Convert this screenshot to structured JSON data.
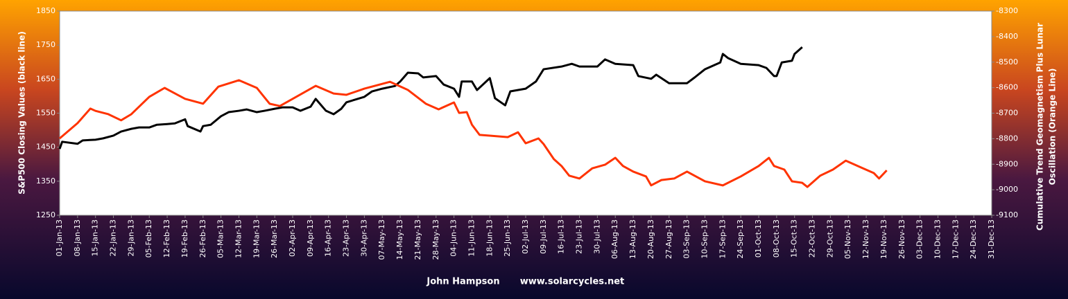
{
  "chart_data": {
    "type": "line",
    "ylabel": "S&P500 Closing  Values (black line)",
    "y2label": [
      "Cumulative Trend Geomagnetism Plus Lunar",
      "Oscillation (Orange Line)"
    ],
    "footer": [
      "John Hampson",
      "www.solarcycles.net"
    ],
    "xlim": [
      "01-Jan-13",
      "31-Dec-13"
    ],
    "xticks": [
      "01-Jan-13",
      "08-Jan-13",
      "15-Jan-13",
      "22-Jan-13",
      "29-Jan-13",
      "05-Feb-13",
      "12-Feb-13",
      "19-Feb-13",
      "26-Feb-13",
      "05-Mar-13",
      "12-Mar-13",
      "19-Mar-13",
      "26-Mar-13",
      "02-Apr-13",
      "09-Apr-13",
      "16-Apr-13",
      "23-Apr-13",
      "30-Apr-13",
      "07-May-13",
      "14-May-13",
      "21-May-13",
      "28-May-13",
      "04-Jun-13",
      "11-Jun-13",
      "18-Jun-13",
      "25-Jun-13",
      "02-Jul-13",
      "09-Jul-13",
      "16-Jul-13",
      "23-Jul-13",
      "30-Jul-13",
      "06-Aug-13",
      "13-Aug-13",
      "20-Aug-13",
      "27-Aug-13",
      "03-Sep-13",
      "10-Sep-13",
      "17-Sep-13",
      "24-Sep-13",
      "01-Oct-13",
      "08-Oct-13",
      "15-Oct-13",
      "22-Oct-13",
      "29-Oct-13",
      "05-Nov-13",
      "12-Nov-13",
      "19-Nov-13",
      "26-Nov-13",
      "03-Dec-13",
      "10-Dec-13",
      "17-Dec-13",
      "24-Dec-13",
      "31-Dec-13"
    ],
    "ylim": [
      1250,
      1850
    ],
    "yticks": [
      1250,
      1350,
      1450,
      1550,
      1650,
      1750,
      1850
    ],
    "y2lim": [
      -9100,
      -8300
    ],
    "y2ticks": [
      -9100,
      -9000,
      -8900,
      -8800,
      -8700,
      -8600,
      -8500,
      -8400,
      -8300
    ],
    "grid": false,
    "series": [
      {
        "name": "S&P500",
        "color": "#000000",
        "x": [
          "01-Jan-13",
          "02-Jan-13",
          "08-Jan-13",
          "10-Jan-13",
          "15-Jan-13",
          "18-Jan-13",
          "22-Jan-13",
          "25-Jan-13",
          "29-Jan-13",
          "01-Feb-13",
          "05-Feb-13",
          "08-Feb-13",
          "12-Feb-13",
          "15-Feb-13",
          "19-Feb-13",
          "20-Feb-13",
          "25-Feb-13",
          "26-Feb-13",
          "01-Mar-13",
          "05-Mar-13",
          "08-Mar-13",
          "12-Mar-13",
          "15-Mar-13",
          "19-Mar-13",
          "22-Mar-13",
          "26-Mar-13",
          "29-Mar-13",
          "02-Apr-13",
          "05-Apr-13",
          "09-Apr-13",
          "11-Apr-13",
          "15-Apr-13",
          "18-Apr-13",
          "21-Apr-13",
          "23-Apr-13",
          "30-Apr-13",
          "03-May-13",
          "07-May-13",
          "12-May-13",
          "14-May-13",
          "17-May-13",
          "21-May-13",
          "23-May-13",
          "28-May-13",
          "31-May-13",
          "04-Jun-13",
          "06-Jun-13",
          "07-Jun-13",
          "11-Jun-13",
          "13-Jun-13",
          "18-Jun-13",
          "20-Jun-13",
          "24-Jun-13",
          "26-Jun-13",
          "02-Jul-13",
          "06-Jul-13",
          "09-Jul-13",
          "16-Jul-13",
          "20-Jul-13",
          "23-Jul-13",
          "30-Jul-13",
          "02-Aug-13",
          "06-Aug-13",
          "13-Aug-13",
          "15-Aug-13",
          "20-Aug-13",
          "22-Aug-13",
          "27-Aug-13",
          "03-Sep-13",
          "06-Sep-13",
          "10-Sep-13",
          "16-Sep-13",
          "17-Sep-13",
          "19-Sep-13",
          "24-Sep-13",
          "01-Oct-13",
          "04-Oct-13",
          "07-Oct-13",
          "08-Oct-13",
          "10-Oct-13",
          "14-Oct-13",
          "15-Oct-13",
          "18-Oct-13"
        ],
        "values": [
          1445,
          1466,
          1460,
          1470,
          1472,
          1476,
          1484,
          1496,
          1504,
          1508,
          1508,
          1516,
          1518,
          1520,
          1532,
          1512,
          1496,
          1512,
          1516,
          1541,
          1553,
          1557,
          1561,
          1553,
          1557,
          1563,
          1567,
          1567,
          1557,
          1569,
          1592,
          1557,
          1547,
          1563,
          1582,
          1598,
          1614,
          1622,
          1630,
          1643,
          1669,
          1667,
          1655,
          1659,
          1634,
          1622,
          1598,
          1643,
          1643,
          1618,
          1653,
          1594,
          1573,
          1614,
          1622,
          1643,
          1679,
          1687,
          1695,
          1687,
          1687,
          1708,
          1695,
          1691,
          1659,
          1651,
          1663,
          1638,
          1638,
          1655,
          1679,
          1699,
          1724,
          1712,
          1695,
          1691,
          1683,
          1659,
          1659,
          1699,
          1704,
          1724,
          1744
        ]
      },
      {
        "name": "Geomagnetism + Lunar",
        "color": "#ff3300",
        "axis": "y2",
        "x": [
          "01-Jan-13",
          "08-Jan-13",
          "13-Jan-13",
          "15-Jan-13",
          "20-Jan-13",
          "25-Jan-13",
          "29-Jan-13",
          "05-Feb-13",
          "11-Feb-13",
          "19-Feb-13",
          "26-Feb-13",
          "04-Mar-13",
          "12-Mar-13",
          "19-Mar-13",
          "24-Mar-13",
          "28-Mar-13",
          "02-Apr-13",
          "11-Apr-13",
          "18-Apr-13",
          "23-Apr-13",
          "30-Apr-13",
          "10-May-13",
          "17-May-13",
          "24-May-13",
          "29-May-13",
          "04-Jun-13",
          "06-Jun-13",
          "09-Jun-13",
          "11-Jun-13",
          "14-Jun-13",
          "18-Jun-13",
          "25-Jun-13",
          "29-Jun-13",
          "02-Jul-13",
          "07-Jul-13",
          "09-Jul-13",
          "13-Jul-13",
          "16-Jul-13",
          "19-Jul-13",
          "23-Jul-13",
          "28-Jul-13",
          "02-Aug-13",
          "06-Aug-13",
          "09-Aug-13",
          "13-Aug-13",
          "18-Aug-13",
          "20-Aug-13",
          "24-Aug-13",
          "29-Aug-13",
          "03-Sep-13",
          "10-Sep-13",
          "17-Sep-13",
          "24-Sep-13",
          "01-Oct-13",
          "05-Oct-13",
          "07-Oct-13",
          "11-Oct-13",
          "14-Oct-13",
          "18-Oct-13",
          "20-Oct-13",
          "25-Oct-13",
          "30-Oct-13",
          "04-Nov-13",
          "10-Nov-13",
          "15-Nov-13",
          "17-Nov-13",
          "20-Nov-13"
        ],
        "values": [
          -8799,
          -8739,
          -8682,
          -8691,
          -8704,
          -8728,
          -8704,
          -8636,
          -8601,
          -8644,
          -8663,
          -8596,
          -8571,
          -8601,
          -8663,
          -8672,
          -8644,
          -8593,
          -8623,
          -8628,
          -8604,
          -8577,
          -8609,
          -8663,
          -8685,
          -8658,
          -8699,
          -8696,
          -8745,
          -8785,
          -8788,
          -8794,
          -8775,
          -8818,
          -8799,
          -8821,
          -8880,
          -8907,
          -8945,
          -8956,
          -8916,
          -8902,
          -8875,
          -8907,
          -8929,
          -8948,
          -8983,
          -8962,
          -8956,
          -8929,
          -8967,
          -8983,
          -8948,
          -8907,
          -8875,
          -8907,
          -8921,
          -8967,
          -8973,
          -8989,
          -8945,
          -8921,
          -8886,
          -8913,
          -8935,
          -8956,
          -8924
        ]
      }
    ]
  }
}
